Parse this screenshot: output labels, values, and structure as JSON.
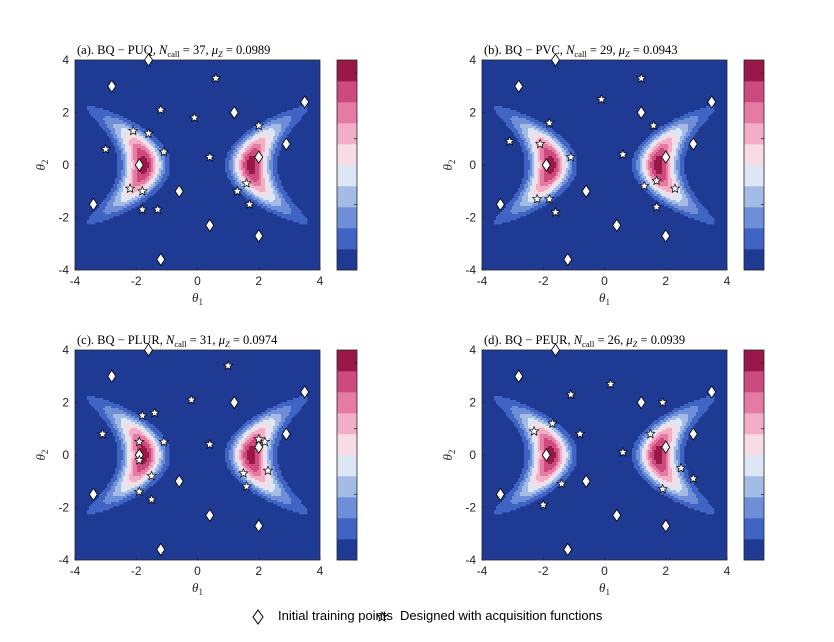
{
  "figure": {
    "legend": {
      "initial_label": "Initial training points",
      "designed_label": "Designed with acquisition functions"
    }
  },
  "chart_data": [
    {
      "type": "contour",
      "title": "(a). BQ − PUQ, N_call = 37,  μ_Z = 0.0989",
      "title_parts": {
        "prefix": "(a). BQ − PUQ, ",
        "n_sym": "N",
        "n_sub": "call",
        "n_val": " = 37,  ",
        "mu_sym": "μ",
        "mu_sub": "Z",
        "mu_val": " = 0.0989"
      },
      "xlabel": "θ1",
      "ylabel": "θ2",
      "xlim": [
        -4,
        4
      ],
      "ylim": [
        -4,
        4
      ],
      "xticks": [
        "-4",
        "-2",
        "0",
        "2",
        "4"
      ],
      "yticks": [
        "-4",
        "-2",
        "0",
        "2",
        "4"
      ],
      "colorbar": {
        "min": 0,
        "max": 0.016,
        "levels": 10,
        "ticks": [
          "0",
          "0.005",
          "0.01",
          "0.015"
        ]
      },
      "initial_points": [
        [
          -1.6,
          4.0
        ],
        [
          -2.8,
          3.0
        ],
        [
          3.5,
          2.4
        ],
        [
          1.2,
          2.0
        ],
        [
          -1.9,
          0.0
        ],
        [
          2.0,
          0.3
        ],
        [
          2.9,
          0.8
        ],
        [
          -0.6,
          -1.0
        ],
        [
          -3.4,
          -1.5
        ],
        [
          0.4,
          -2.3
        ],
        [
          2.0,
          -2.7
        ],
        [
          -1.2,
          -3.6
        ]
      ],
      "designed_points": [
        [
          0.6,
          3.3
        ],
        [
          -1.2,
          2.1
        ],
        [
          -0.1,
          1.8
        ],
        [
          -2.1,
          1.3
        ],
        [
          -1.6,
          1.2
        ],
        [
          -3.0,
          0.6
        ],
        [
          -1.1,
          0.5
        ],
        [
          0.4,
          0.3
        ],
        [
          2.0,
          1.5
        ],
        [
          1.3,
          -1.0
        ],
        [
          1.6,
          -0.7
        ],
        [
          -2.2,
          -0.9
        ],
        [
          -1.8,
          -1.0
        ],
        [
          -1.8,
          -1.7
        ],
        [
          -1.3,
          -1.7
        ],
        [
          1.7,
          -1.5
        ]
      ]
    },
    {
      "type": "contour",
      "title": "(b). BQ − PVC, N_call = 29,  μ_Z = 0.0943",
      "title_parts": {
        "prefix": "(b). BQ − PVC, ",
        "n_sym": "N",
        "n_sub": "call",
        "n_val": " = 29,  ",
        "mu_sym": "μ",
        "mu_sub": "Z",
        "mu_val": " = 0.0943"
      },
      "xlabel": "θ1",
      "ylabel": "θ2",
      "xlim": [
        -4,
        4
      ],
      "ylim": [
        -4,
        4
      ],
      "xticks": [
        "-4",
        "-2",
        "0",
        "2",
        "4"
      ],
      "yticks": [
        "-4",
        "-2",
        "0",
        "2",
        "4"
      ],
      "colorbar": {
        "min": 0,
        "max": 0.016,
        "levels": 10,
        "ticks": [
          "0",
          "0.005",
          "0.01",
          "0.015"
        ]
      },
      "initial_points": [
        [
          -1.6,
          4.0
        ],
        [
          -2.8,
          3.0
        ],
        [
          3.5,
          2.4
        ],
        [
          1.2,
          2.0
        ],
        [
          -1.9,
          0.0
        ],
        [
          2.0,
          0.3
        ],
        [
          2.9,
          0.8
        ],
        [
          -0.6,
          -1.0
        ],
        [
          -3.4,
          -1.5
        ],
        [
          0.4,
          -2.3
        ],
        [
          2.0,
          -2.7
        ],
        [
          -1.2,
          -3.6
        ]
      ],
      "designed_points": [
        [
          1.2,
          3.3
        ],
        [
          -0.1,
          2.5
        ],
        [
          -1.8,
          1.6
        ],
        [
          1.6,
          1.5
        ],
        [
          -3.1,
          0.9
        ],
        [
          -2.1,
          0.8
        ],
        [
          -1.1,
          0.3
        ],
        [
          0.6,
          0.4
        ],
        [
          1.7,
          -0.6
        ],
        [
          1.3,
          -0.8
        ],
        [
          2.3,
          -0.9
        ],
        [
          -2.2,
          -1.3
        ],
        [
          -1.8,
          -1.3
        ],
        [
          -1.6,
          -1.8
        ],
        [
          1.7,
          -1.6
        ]
      ]
    },
    {
      "type": "contour",
      "title": "(c). BQ − PLUR, N_call = 31,  μ_Z = 0.0974",
      "title_parts": {
        "prefix": "(c). BQ − PLUR, ",
        "n_sym": "N",
        "n_sub": "call",
        "n_val": " = 31,  ",
        "mu_sym": "μ",
        "mu_sub": "Z",
        "mu_val": " = 0.0974"
      },
      "xlabel": "θ1",
      "ylabel": "θ2",
      "xlim": [
        -4,
        4
      ],
      "ylim": [
        -4,
        4
      ],
      "xticks": [
        "-4",
        "-2",
        "0",
        "2",
        "4"
      ],
      "yticks": [
        "-4",
        "-2",
        "0",
        "2",
        "4"
      ],
      "colorbar": {
        "min": 0,
        "max": 0.016,
        "levels": 10,
        "ticks": [
          "0",
          "0.005",
          "0.01",
          "0.015"
        ]
      },
      "initial_points": [
        [
          -1.6,
          4.0
        ],
        [
          -2.8,
          3.0
        ],
        [
          3.5,
          2.4
        ],
        [
          1.2,
          2.0
        ],
        [
          -1.9,
          0.0
        ],
        [
          2.0,
          0.3
        ],
        [
          2.9,
          0.8
        ],
        [
          -0.6,
          -1.0
        ],
        [
          -3.4,
          -1.5
        ],
        [
          0.4,
          -2.3
        ],
        [
          2.0,
          -2.7
        ],
        [
          -1.2,
          -3.6
        ]
      ],
      "designed_points": [
        [
          1.0,
          3.4
        ],
        [
          -0.2,
          2.1
        ],
        [
          -1.8,
          1.5
        ],
        [
          -1.4,
          1.6
        ],
        [
          -3.1,
          0.8
        ],
        [
          -1.9,
          0.5
        ],
        [
          -1.1,
          0.5
        ],
        [
          0.4,
          0.4
        ],
        [
          2.0,
          0.6
        ],
        [
          2.2,
          0.5
        ],
        [
          -1.9,
          -0.2
        ],
        [
          -1.5,
          -0.8
        ],
        [
          1.5,
          -0.7
        ],
        [
          2.3,
          -0.6
        ],
        [
          -1.9,
          -1.4
        ],
        [
          -1.5,
          -1.7
        ],
        [
          1.6,
          -1.2
        ]
      ]
    },
    {
      "type": "contour",
      "title": "(d). BQ − PEUR, N_call = 26,  μ_Z = 0.0939",
      "title_parts": {
        "prefix": "(d). BQ − PEUR, ",
        "n_sym": "N",
        "n_sub": "call",
        "n_val": " = 26,  ",
        "mu_sym": "μ",
        "mu_sub": "Z",
        "mu_val": " = 0.0939"
      },
      "xlabel": "θ1",
      "ylabel": "θ2",
      "xlim": [
        -4,
        4
      ],
      "ylim": [
        -4,
        4
      ],
      "xticks": [
        "-4",
        "-2",
        "0",
        "2",
        "4"
      ],
      "yticks": [
        "-4",
        "-2",
        "0",
        "2",
        "4"
      ],
      "colorbar": {
        "min": 0,
        "max": 0.016,
        "levels": 10,
        "ticks": [
          "0",
          "0.005",
          "0.01",
          "0.015"
        ]
      },
      "initial_points": [
        [
          -1.6,
          4.0
        ],
        [
          -2.8,
          3.0
        ],
        [
          3.5,
          2.4
        ],
        [
          1.2,
          2.0
        ],
        [
          -1.9,
          0.0
        ],
        [
          2.0,
          0.3
        ],
        [
          2.9,
          0.8
        ],
        [
          -0.6,
          -1.0
        ],
        [
          -3.4,
          -1.5
        ],
        [
          0.4,
          -2.3
        ],
        [
          2.0,
          -2.7
        ],
        [
          -1.2,
          -3.6
        ]
      ],
      "designed_points": [
        [
          0.2,
          2.7
        ],
        [
          -1.1,
          2.3
        ],
        [
          1.9,
          2.0
        ],
        [
          -1.7,
          1.2
        ],
        [
          -2.3,
          0.9
        ],
        [
          -0.8,
          0.8
        ],
        [
          1.5,
          0.8
        ],
        [
          0.6,
          0.1
        ],
        [
          2.5,
          -0.5
        ],
        [
          2.9,
          -0.9
        ],
        [
          1.9,
          -1.3
        ],
        [
          -1.4,
          -1.1
        ],
        [
          -2.0,
          -1.9
        ]
      ]
    }
  ],
  "style": {
    "colormap": [
      "#1f3a93",
      "#3f64c4",
      "#6e8fd8",
      "#a4bbe6",
      "#dde6f5",
      "#f7dbe5",
      "#f2aec6",
      "#e57ba3",
      "#cc4a7e",
      "#9a1848"
    ]
  }
}
